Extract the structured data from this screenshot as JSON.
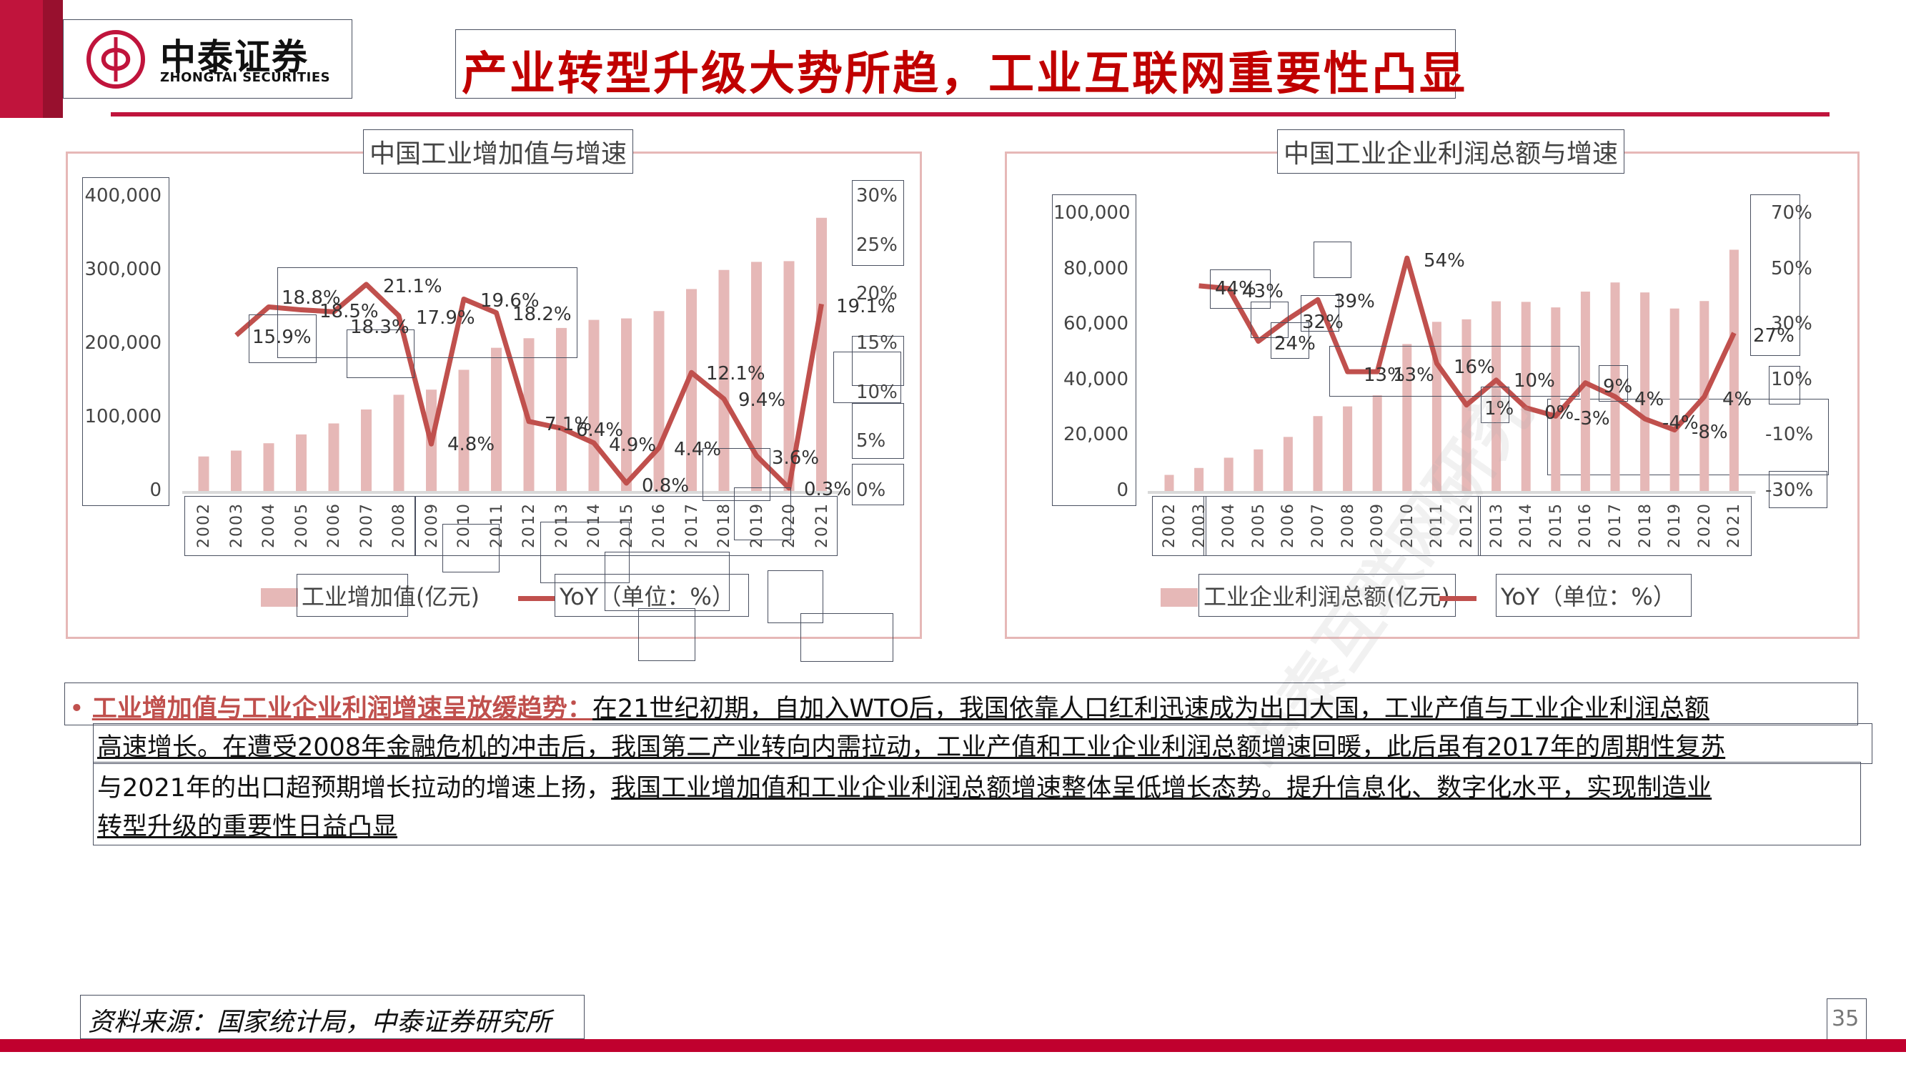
{
  "header": {
    "logo_cn": "中泰证券",
    "logo_en": "ZHONGTAI SECURITIES",
    "title": "产业转型升级大势所趋，工业互联网重要性凸显",
    "brand_color": "#c0143c",
    "title_color": "#c00000"
  },
  "chart1": {
    "title": "中国工业增加值与增速",
    "left_ticks": [
      "400,000",
      "300,000",
      "200,000",
      "100,000",
      "0"
    ],
    "right_ticks": [
      "30%",
      "25%",
      "20%",
      "15%",
      "10%",
      "5%",
      "0%"
    ],
    "legend_bar": "工业增加值(亿元)",
    "legend_line": "YoY（单位：%）"
  },
  "chart2": {
    "title": "中国工业企业利润总额与增速",
    "left_ticks": [
      "100,000",
      "80,000",
      "60,000",
      "40,000",
      "20,000",
      "0"
    ],
    "right_ticks": [
      "70%",
      "50%",
      "30%",
      "10%",
      "-10%",
      "-30%"
    ],
    "legend_bar": "工业企业利润总额(亿元)",
    "legend_line": "YoY（单位：%）"
  },
  "chart_data": [
    {
      "type": "bar",
      "title": "中国工业增加值与增速",
      "categories": [
        "2002",
        "2003",
        "2004",
        "2005",
        "2006",
        "2007",
        "2008",
        "2009",
        "2010",
        "2011",
        "2012",
        "2013",
        "2014",
        "2015",
        "2016",
        "2017",
        "2018",
        "2019",
        "2020",
        "2021"
      ],
      "series": [
        {
          "name": "工业增加值(亿元)",
          "type": "bar",
          "axis": "left",
          "color": "#e6b8b7",
          "values": [
            47000,
            55000,
            65000,
            77000,
            92000,
            111000,
            131000,
            138000,
            165000,
            195000,
            208000,
            222000,
            233000,
            235000,
            245000,
            275000,
            301000,
            312000,
            313000,
            372000
          ]
        },
        {
          "name": "YoY（单位：%）",
          "type": "line",
          "axis": "right",
          "color": "#c0504d",
          "values": [
            null,
            15.9,
            18.8,
            18.5,
            18.3,
            21.1,
            17.9,
            4.8,
            19.6,
            18.2,
            7.1,
            6.4,
            4.9,
            0.8,
            4.4,
            12.1,
            9.4,
            3.6,
            0.3,
            19.1
          ],
          "labels": [
            "",
            "15.9%",
            "18.8%",
            "18.5%",
            "18.3%",
            "21.1%",
            "17.9%",
            "4.8%",
            "19.6%",
            "18.2%",
            "7.1%",
            "6.4%",
            "4.9%",
            "0.8%",
            "4.4%",
            "12.1%",
            "9.4%",
            "3.6%",
            "0.3%",
            "19.1%"
          ]
        }
      ],
      "ylim": [
        0,
        400000
      ],
      "y2lim": [
        0,
        30
      ],
      "legend_position": "bottom",
      "grid": false
    },
    {
      "type": "bar",
      "title": "中国工业企业利润总额与增速",
      "categories": [
        "2002",
        "2003",
        "2004",
        "2005",
        "2006",
        "2007",
        "2008",
        "2009",
        "2010",
        "2011",
        "2012",
        "2013",
        "2014",
        "2015",
        "2016",
        "2017",
        "2018",
        "2019",
        "2020",
        "2021"
      ],
      "series": [
        {
          "name": "工业企业利润总额(亿元)",
          "type": "bar",
          "axis": "left",
          "color": "#e6b8b7",
          "values": [
            5800,
            8300,
            12000,
            15000,
            19500,
            27000,
            30500,
            34500,
            53000,
            61000,
            61900,
            68400,
            68200,
            66200,
            71900,
            75200,
            71600,
            65800,
            68500,
            87000
          ]
        },
        {
          "name": "YoY（单位：%）",
          "type": "line",
          "axis": "right",
          "color": "#c0504d",
          "values": [
            null,
            44,
            43,
            24,
            32,
            39,
            13,
            13,
            54,
            16,
            1,
            10,
            0,
            -3,
            9,
            4,
            -4,
            -8,
            4,
            27
          ],
          "labels": [
            "",
            "44%",
            "43%",
            "24%",
            "32%",
            "39%",
            "13%",
            "13%",
            "54%",
            "16%",
            "1%",
            "10%",
            "0%",
            "-3%",
            "9%",
            "4%",
            "-4%",
            "-8%",
            "4%",
            "27%"
          ]
        }
      ],
      "ylim": [
        0,
        100000
      ],
      "y2lim": [
        -30,
        70
      ],
      "legend_position": "bottom",
      "grid": false
    }
  ],
  "body": {
    "bullet": "•",
    "highlight": "工业增加值与工业企业利润增速呈放缓趋势：",
    "line1_rest": "在21世纪初期，自加入WTO后，我国依靠人口红利迅速成为出口大国，工业产值与工业企业利润总额",
    "line2": "高速增长。在遭受2008年金融危机的冲击后，我国第二产业转向内需拉动，工业产值和工业企业利润总额增速回暖，此后虽有2017年的周期性复苏",
    "line3_plain": "与2021年的出口超预期增长拉动的增速上扬，",
    "line3_underlined": "我国工业增加值和工业企业利润总额增速整体呈低增长态势。提升信息化、数字化水平，实现制造业",
    "line4_underlined": "转型升级的重要性日益凸显"
  },
  "footer": {
    "source": "资料来源：国家统计局，中泰证券研究所",
    "page_number": "35"
  },
  "watermark": "中泰互联网研究"
}
